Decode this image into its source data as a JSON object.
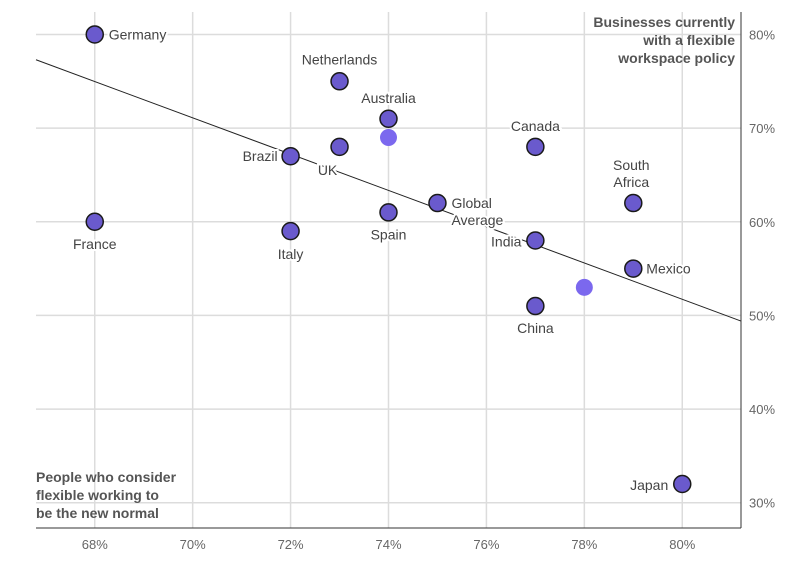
{
  "chart_data": {
    "type": "scatter",
    "xlabel": "People who consider flexible working to be the new normal",
    "xlabel_lines": [
      "People who consider",
      "flexible working to",
      "be the new normal"
    ],
    "ylabel": "Businesses currently with a flexible workspace policy",
    "ylabel_lines": [
      "Businesses currently",
      "with a flexible",
      "workspace policy"
    ],
    "xlim": [
      66.8,
      81.2
    ],
    "ylim": [
      27.3,
      82.4
    ],
    "x_ticks": [
      68,
      70,
      72,
      74,
      76,
      78,
      80
    ],
    "x_tick_labels": [
      "68%",
      "70%",
      "72%",
      "74%",
      "76%",
      "78%",
      "80%"
    ],
    "y_ticks": [
      30,
      40,
      50,
      60,
      70,
      80
    ],
    "y_tick_labels": [
      "30%",
      "40%",
      "50%",
      "60%",
      "70%",
      "80%"
    ],
    "grid": true,
    "point_color": "#6a5acd",
    "unlabeled_color": "#7b68ee",
    "points": [
      {
        "label": "Germany",
        "x": 68,
        "y": 80
      },
      {
        "label": "France",
        "x": 68,
        "y": 60
      },
      {
        "label": "Netherlands",
        "x": 73,
        "y": 75
      },
      {
        "label": "Australia",
        "x": 74,
        "y": 71
      },
      {
        "label": "",
        "x": 74,
        "y": 69
      },
      {
        "label": "UK",
        "x": 73,
        "y": 68
      },
      {
        "label": "Brazil",
        "x": 72,
        "y": 67
      },
      {
        "label": "Italy",
        "x": 72,
        "y": 59
      },
      {
        "label": "Spain",
        "x": 74,
        "y": 61
      },
      {
        "label": "Global Average",
        "label_lines": [
          "Global",
          "Average"
        ],
        "x": 75,
        "y": 62
      },
      {
        "label": "Canada",
        "x": 77,
        "y": 68
      },
      {
        "label": "South Africa",
        "label_lines": [
          "South",
          "Africa"
        ],
        "x": 79,
        "y": 62
      },
      {
        "label": "India",
        "x": 77,
        "y": 58
      },
      {
        "label": "Mexico",
        "x": 79,
        "y": 55
      },
      {
        "label": "",
        "x": 78,
        "y": 53
      },
      {
        "label": "China",
        "x": 77,
        "y": 51
      },
      {
        "label": "Japan",
        "x": 80,
        "y": 32
      }
    ],
    "trendline": {
      "x": [
        66.8,
        81.2
      ],
      "y": [
        77.3,
        49.4
      ]
    }
  }
}
